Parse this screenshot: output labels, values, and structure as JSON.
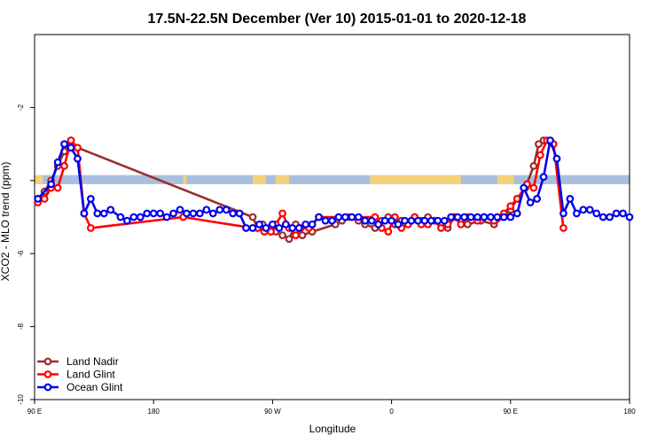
{
  "chart_data": {
    "type": "line",
    "title": "17.5N-22.5N December (Ver 10)   2015-01-01 to 2020-12-18",
    "xlabel": "Longitude",
    "ylabel": "XCO2 - MLO trend (ppm)",
    "xlim": [
      0,
      360
    ],
    "ylim": [
      -10,
      0
    ],
    "x_ticks": [
      {
        "value": 0,
        "label": "90 E"
      },
      {
        "value": 72,
        "label": "180"
      },
      {
        "value": 144,
        "label": "90 W"
      },
      {
        "value": 216,
        "label": "0"
      },
      {
        "value": 288,
        "label": "90 E"
      },
      {
        "value": 360,
        "label": "180"
      }
    ],
    "y_ticks": [
      {
        "value": -2,
        "label": "-2"
      },
      {
        "value": -4,
        "label": ""
      },
      {
        "value": -6,
        "label": "-6"
      },
      {
        "value": -8,
        "label": "-8"
      },
      {
        "value": -10,
        "label": "-10"
      }
    ],
    "legend_position": "bottom-left",
    "background_strip": {
      "y_range": [
        -4.1,
        -3.85
      ],
      "ocean_color": "#a9bfe0",
      "land_color": "#f5d27a",
      "land_segments": [
        [
          0,
          5
        ],
        [
          90,
          92
        ],
        [
          132,
          140
        ],
        [
          146,
          154
        ],
        [
          203,
          258
        ],
        [
          280,
          290
        ]
      ]
    },
    "series": [
      {
        "name": "Land Nadir",
        "color": "#9b2d2d",
        "x": [
          2,
          6,
          10,
          14,
          18,
          22,
          26,
          132,
          135,
          138,
          142,
          146,
          150,
          154,
          158,
          162,
          168,
          182,
          186,
          190,
          196,
          200,
          206,
          210,
          214,
          218,
          222,
          226,
          230,
          234,
          238,
          242,
          246,
          250,
          254,
          258,
          262,
          270,
          278,
          284,
          288,
          292,
          297,
          302,
          305,
          308
        ],
        "y": [
          -4.5,
          -4.3,
          -4.0,
          -3.6,
          -3.2,
          -2.9,
          -3.1,
          -5.0,
          -5.3,
          -5.2,
          -5.3,
          -5.4,
          -5.5,
          -5.6,
          -5.2,
          -5.5,
          -5.4,
          -5.2,
          -5.1,
          -5.0,
          -5.1,
          -5.2,
          -5.3,
          -5.1,
          -5.0,
          -5.2,
          -5.1,
          -5.2,
          -5.0,
          -5.1,
          -5.0,
          -5.1,
          -5.2,
          -5.3,
          -5.0,
          -5.1,
          -5.2,
          -5.1,
          -5.2,
          -5.0,
          -4.8,
          -4.5,
          -4.2,
          -3.6,
          -3.0,
          -2.9
        ]
      },
      {
        "name": "Land Glint",
        "color": "#ff0000",
        "x": [
          2,
          6,
          10,
          14,
          18,
          22,
          26,
          30,
          34,
          90,
          132,
          135,
          139,
          143,
          146,
          150,
          154,
          158,
          161,
          166,
          168,
          172,
          206,
          210,
          214,
          218,
          222,
          226,
          230,
          234,
          238,
          242,
          246,
          250,
          254,
          258,
          262,
          268,
          272,
          278,
          284,
          288,
          292,
          298,
          302,
          306,
          310,
          314,
          320
        ],
        "y": [
          -4.6,
          -4.5,
          -4.2,
          -4.2,
          -3.6,
          -2.9,
          -3.1,
          -4.9,
          -5.3,
          -5.0,
          -5.3,
          -5.3,
          -5.4,
          -5.4,
          -5.2,
          -4.9,
          -5.3,
          -5.5,
          -5.3,
          -5.3,
          -5.2,
          -5.0,
          -5.0,
          -5.3,
          -5.4,
          -5.0,
          -5.3,
          -5.2,
          -5.0,
          -5.2,
          -5.2,
          -5.1,
          -5.3,
          -5.2,
          -5.0,
          -5.2,
          -5.0,
          -5.1,
          -5.0,
          -5.1,
          -4.9,
          -4.7,
          -4.5,
          -4.1,
          -4.2,
          -3.3,
          -2.9,
          -3.0,
          -5.3
        ]
      },
      {
        "name": "Ocean Glint",
        "color": "#0000ee",
        "x": [
          2,
          10,
          14,
          18,
          22,
          26,
          30,
          34,
          38,
          42,
          46,
          52,
          56,
          60,
          64,
          68,
          72,
          76,
          80,
          84,
          88,
          92,
          96,
          100,
          104,
          108,
          112,
          116,
          120,
          124,
          128,
          132,
          136,
          140,
          144,
          148,
          152,
          156,
          160,
          164,
          168,
          172,
          176,
          180,
          184,
          188,
          192,
          196,
          200,
          204,
          208,
          212,
          216,
          220,
          224,
          228,
          232,
          236,
          240,
          244,
          248,
          252,
          256,
          260,
          264,
          268,
          272,
          276,
          280,
          284,
          288,
          292,
          296,
          300,
          304,
          308,
          312,
          316,
          320,
          324,
          328,
          332,
          336,
          340,
          344,
          348,
          352,
          356,
          360
        ],
        "y": [
          -4.5,
          -4.1,
          -3.5,
          -3.0,
          -3.1,
          -3.4,
          -4.9,
          -4.5,
          -4.9,
          -4.9,
          -4.8,
          -5.0,
          -5.1,
          -5.0,
          -5.0,
          -4.9,
          -4.9,
          -4.9,
          -5.0,
          -4.9,
          -4.8,
          -4.9,
          -4.9,
          -4.9,
          -4.8,
          -4.9,
          -4.8,
          -4.8,
          -4.9,
          -4.9,
          -5.3,
          -5.3,
          -5.2,
          -5.3,
          -5.2,
          -5.3,
          -5.2,
          -5.3,
          -5.3,
          -5.2,
          -5.2,
          -5.0,
          -5.1,
          -5.1,
          -5.0,
          -5.0,
          -5.0,
          -5.0,
          -5.1,
          -5.1,
          -5.2,
          -5.1,
          -5.1,
          -5.2,
          -5.1,
          -5.1,
          -5.1,
          -5.1,
          -5.1,
          -5.1,
          -5.1,
          -5.0,
          -5.0,
          -5.0,
          -5.0,
          -5.0,
          -5.0,
          -5.0,
          -5.0,
          -5.0,
          -5.0,
          -4.9,
          -4.2,
          -4.6,
          -4.5,
          -3.9,
          -2.9,
          -3.4,
          -4.9,
          -4.5,
          -4.9,
          -4.8,
          -4.8,
          -4.9,
          -5.0,
          -5.0,
          -4.9,
          -4.9,
          -5.0
        ]
      }
    ]
  }
}
